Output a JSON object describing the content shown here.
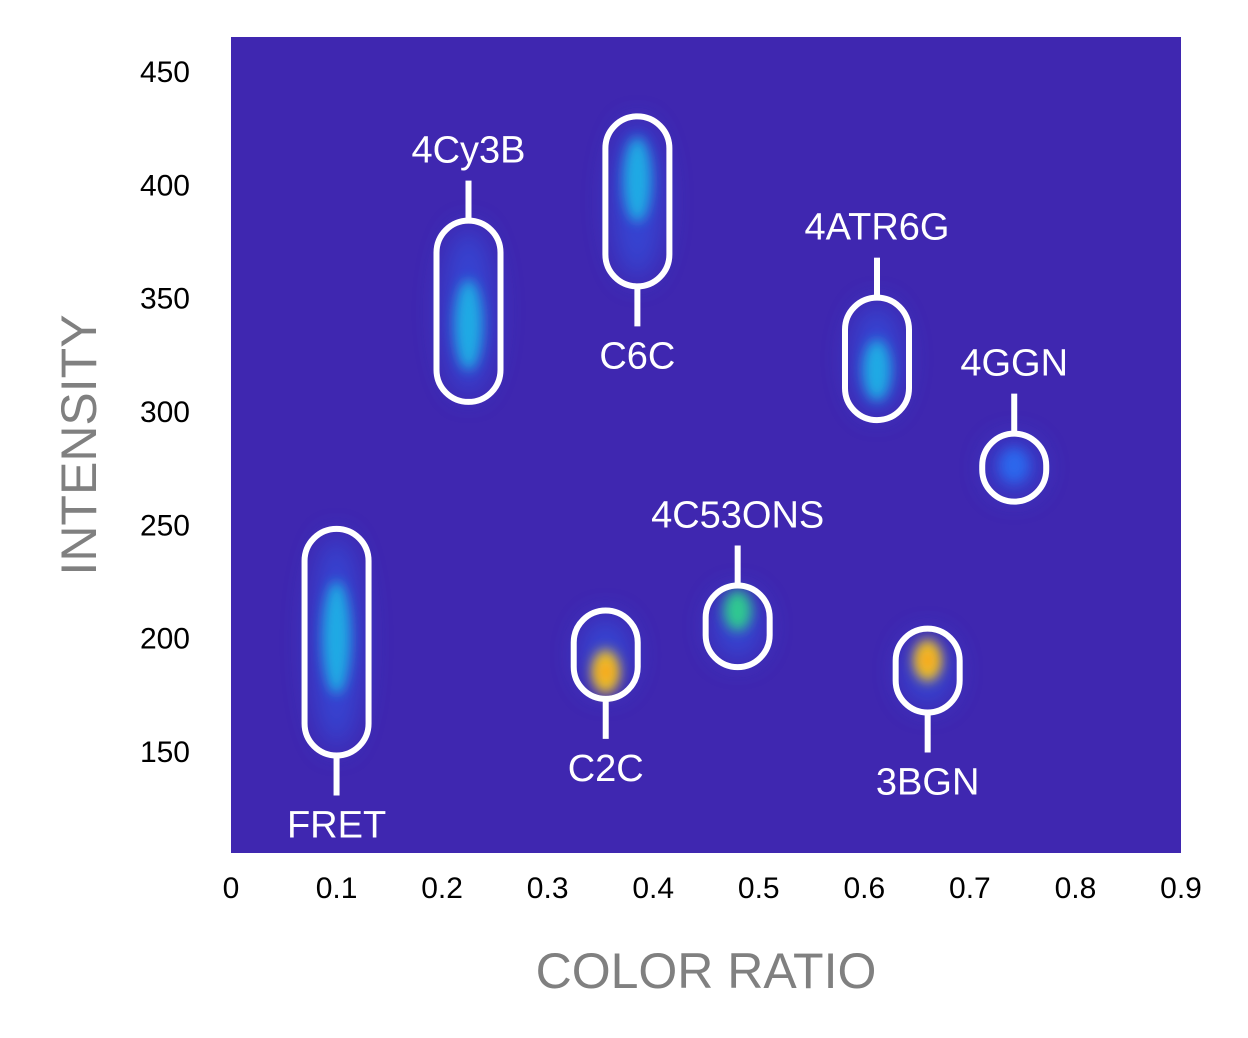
{
  "chart_data": {
    "type": "heatmap",
    "title": "",
    "xlabel": "COLOR RATIO",
    "ylabel": "INTENSITY",
    "xlim": [
      0,
      0.9
    ],
    "ylim": [
      105,
      465
    ],
    "x_ticks": [
      0,
      0.1,
      0.2,
      0.3,
      0.4,
      0.5,
      0.6,
      0.7,
      0.8,
      0.9
    ],
    "x_tick_labels": [
      "0",
      "0.1",
      "0.2",
      "0.3",
      "0.4",
      "0.5",
      "0.6",
      "0.7",
      "0.8",
      "0.9"
    ],
    "y_ticks": [
      150,
      200,
      250,
      300,
      350,
      400,
      450
    ],
    "y_tick_labels": [
      "150",
      "200",
      "250",
      "300",
      "350",
      "400",
      "450"
    ],
    "background_color": "#3f27b0",
    "outline_color": "#ffffff",
    "clusters": [
      {
        "label": "FRET",
        "x": 0.1,
        "y": 200,
        "y_min": 148,
        "y_max": 248,
        "peak": 0.45,
        "label_side": "below"
      },
      {
        "label": "4Cy3B",
        "x": 0.225,
        "y": 338,
        "y_min": 304,
        "y_max": 384,
        "peak": 0.5,
        "label_side": "above"
      },
      {
        "label": "C2C",
        "x": 0.355,
        "y": 185,
        "y_min": 173,
        "y_max": 212,
        "peak": 1.0,
        "label_side": "below"
      },
      {
        "label": "C6C",
        "x": 0.385,
        "y": 402,
        "y_min": 355,
        "y_max": 430,
        "peak": 0.5,
        "label_side": "below"
      },
      {
        "label": "4C53ONS",
        "x": 0.48,
        "y": 212,
        "y_min": 187,
        "y_max": 223,
        "peak": 0.72,
        "label_side": "above"
      },
      {
        "label": "4ATR6G",
        "x": 0.612,
        "y": 318,
        "y_min": 296,
        "y_max": 350,
        "peak": 0.55,
        "label_side": "above"
      },
      {
        "label": "3BGN",
        "x": 0.66,
        "y": 190,
        "y_min": 167,
        "y_max": 204,
        "peak": 0.95,
        "label_side": "below"
      },
      {
        "label": "4GGN",
        "x": 0.742,
        "y": 276,
        "y_min": 260,
        "y_max": 290,
        "peak": 0.3,
        "label_side": "above"
      }
    ]
  }
}
